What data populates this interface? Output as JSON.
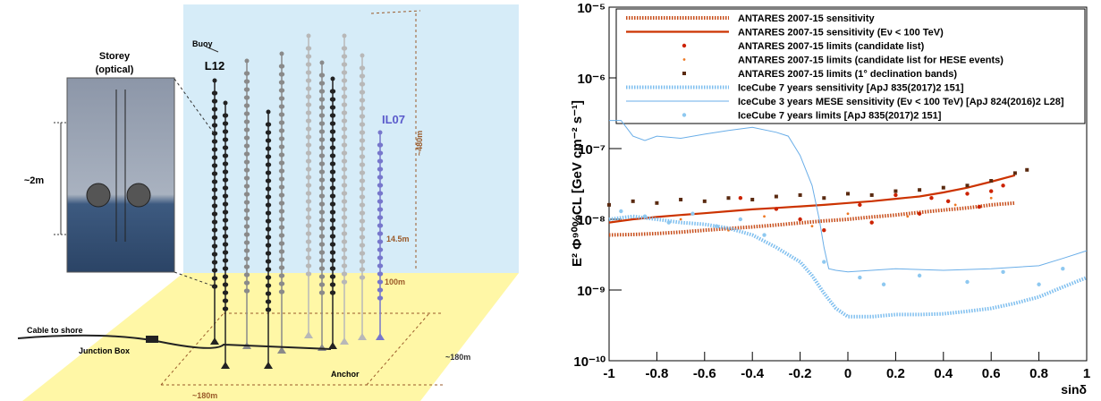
{
  "diagram": {
    "storey": "Storey",
    "storey_type": "(optical)",
    "storey_height": "~2m",
    "buoy": "Buoy",
    "line_l12": "L12",
    "line_il07": "IL07",
    "line_height": "~480m",
    "storey_spacing": "14.5m",
    "first_storey": "100m",
    "cable": "Cable to shore",
    "junction_box": "Junction Box",
    "anchor": "Anchor",
    "width_front": "~180m",
    "width_side": "~180m"
  },
  "chart_data": {
    "type": "line",
    "x_label": "sinδ",
    "y_label": "E² Φ⁹⁰%CL [GeV cm⁻² s⁻¹]",
    "xlim": [
      -1,
      1
    ],
    "xticks": [
      -1,
      -0.8,
      -0.6,
      -0.4,
      -0.2,
      0,
      0.2,
      0.4,
      0.6,
      0.8,
      1
    ],
    "ylim": [
      1e-10,
      1e-05
    ],
    "y_scale": "log",
    "yticks": [
      {
        "value": 1e-10,
        "label": "10⁻¹⁰"
      },
      {
        "value": 1e-09,
        "label": "10⁻⁹"
      },
      {
        "value": 1e-08,
        "label": "10⁻⁸"
      },
      {
        "value": 1e-07,
        "label": "10⁻⁷"
      },
      {
        "value": 1e-06,
        "label": "10⁻⁶"
      },
      {
        "value": 1e-05,
        "label": "10⁻⁵"
      }
    ],
    "legend": "top",
    "series": [
      {
        "name": "ANTARES 2007-15 sensitivity",
        "color": "#c8501e",
        "style": "dotted",
        "x": [
          -1,
          -0.9,
          -0.8,
          -0.7,
          -0.6,
          -0.5,
          -0.4,
          -0.3,
          -0.2,
          -0.1,
          0,
          0.1,
          0.2,
          0.3,
          0.4,
          0.5,
          0.6,
          0.7
        ],
        "values": [
          6e-09,
          6.1e-09,
          6.3e-09,
          6.6e-09,
          7e-09,
          7.4e-09,
          7.8e-09,
          8.3e-09,
          8.9e-09,
          9.5e-09,
          1e-08,
          1.08e-08,
          1.15e-08,
          1.25e-08,
          1.35e-08,
          1.45e-08,
          1.6e-08,
          1.7e-08
        ]
      },
      {
        "name": "ANTARES 2007-15 sensitivity (Eν < 100 TeV)",
        "color": "#cc3300",
        "style": "solid",
        "x": [
          -1,
          -0.9,
          -0.8,
          -0.7,
          -0.6,
          -0.5,
          -0.4,
          -0.3,
          -0.2,
          -0.1,
          0,
          0.1,
          0.2,
          0.3,
          0.4,
          0.5,
          0.6,
          0.7
        ],
        "values": [
          9e-09,
          1e-08,
          1.08e-08,
          1.15e-08,
          1.22e-08,
          1.3e-08,
          1.38e-08,
          1.45e-08,
          1.52e-08,
          1.6e-08,
          1.7e-08,
          1.8e-08,
          1.95e-08,
          2.1e-08,
          2.4e-08,
          2.8e-08,
          3.4e-08,
          4.2e-08
        ]
      },
      {
        "name": "ANTARES 2007-15 limits (candidate list)",
        "color": "#cc2200",
        "style": "dots",
        "x": [
          -0.45,
          -0.3,
          -0.2,
          -0.1,
          0.05,
          0.1,
          0.2,
          0.3,
          0.35,
          0.42,
          0.5,
          0.55,
          0.6,
          0.65
        ],
        "values": [
          2e-08,
          1.4e-08,
          1e-08,
          7e-09,
          1.6e-08,
          9e-09,
          2.2e-08,
          1.2e-08,
          2e-08,
          1.8e-08,
          2.3e-08,
          1.5e-08,
          2.5e-08,
          3e-08
        ]
      },
      {
        "name": "ANTARES 2007-15 limits (candidate list for HESE events)",
        "color": "#ee7722",
        "style": "small-dots",
        "x": [
          -0.7,
          -0.5,
          -0.35,
          -0.15,
          0,
          0.25,
          0.45,
          0.6
        ],
        "values": [
          1e-08,
          7e-09,
          1.1e-08,
          8e-09,
          1.2e-08,
          1.1e-08,
          1.6e-08,
          2e-08
        ]
      },
      {
        "name": "ANTARES 2007-15 limits (1° declination bands)",
        "color": "#5a2a10",
        "style": "squares",
        "x": [
          -1,
          -0.9,
          -0.8,
          -0.7,
          -0.6,
          -0.5,
          -0.4,
          -0.3,
          -0.2,
          -0.1,
          0,
          0.1,
          0.2,
          0.3,
          0.4,
          0.5,
          0.6,
          0.7,
          0.75
        ],
        "values": [
          1.6e-08,
          1.8e-08,
          1.7e-08,
          1.9e-08,
          1.8e-08,
          2e-08,
          1.9e-08,
          2.1e-08,
          2.2e-08,
          2e-08,
          2.3e-08,
          2.2e-08,
          2.5e-08,
          2.6e-08,
          2.8e-08,
          3e-08,
          3.5e-08,
          4.5e-08,
          5e-08
        ]
      },
      {
        "name": "IceCube 7 years sensitivity [ApJ 835(2017)2 151]",
        "color": "#7fbfef",
        "style": "dotted",
        "x": [
          -1,
          -0.9,
          -0.8,
          -0.7,
          -0.6,
          -0.5,
          -0.4,
          -0.3,
          -0.2,
          -0.15,
          -0.1,
          -0.05,
          0,
          0.1,
          0.2,
          0.3,
          0.4,
          0.5,
          0.6,
          0.7,
          0.8,
          0.9,
          1
        ],
        "values": [
          1e-08,
          1.1e-08,
          1e-08,
          9e-09,
          8.5e-09,
          7.5e-09,
          6e-09,
          4e-09,
          2.5e-09,
          1.6e-09,
          9e-10,
          5.5e-10,
          4.2e-10,
          4.2e-10,
          4.5e-10,
          4.5e-10,
          4.6e-10,
          5e-10,
          5.5e-10,
          6.5e-10,
          8e-10,
          1.1e-09,
          1.5e-09
        ]
      },
      {
        "name": "IceCube 3 years MESE sensitivity (Eν < 100 TeV) [ApJ 824(2016)2 L28]",
        "color": "#6aaee8",
        "style": "thin",
        "x": [
          -1,
          -0.95,
          -0.9,
          -0.85,
          -0.8,
          -0.7,
          -0.6,
          -0.5,
          -0.4,
          -0.3,
          -0.25,
          -0.2,
          -0.15,
          -0.12,
          -0.1,
          -0.08,
          -0.05,
          0,
          0.2,
          0.4,
          0.6,
          0.8,
          0.9,
          1
        ],
        "values": [
          2.5e-07,
          2.5e-07,
          1.5e-07,
          1.3e-07,
          1.5e-07,
          1.4e-07,
          1.6e-07,
          1.8e-07,
          2e-07,
          1.7e-07,
          1.5e-07,
          8e-08,
          3e-08,
          1e-08,
          4e-09,
          2e-09,
          1.9e-09,
          1.8e-09,
          2e-09,
          1.9e-09,
          2e-09,
          2.2e-09,
          2.8e-09,
          3.6e-09
        ]
      },
      {
        "name": "IceCube 7 years limits [ApJ 835(2017)2 151]",
        "color": "#8ec8f0",
        "style": "dots",
        "x": [
          -0.95,
          -0.85,
          -0.75,
          -0.65,
          -0.55,
          -0.45,
          -0.35,
          -0.1,
          0.05,
          0.15,
          0.3,
          0.5,
          0.65,
          0.8,
          0.9
        ],
        "values": [
          1.3e-08,
          1.1e-08,
          9e-09,
          1.2e-08,
          8e-09,
          1e-08,
          6e-09,
          2.5e-09,
          1.5e-09,
          1.2e-09,
          1.6e-09,
          1.3e-09,
          1.8e-09,
          1.2e-09,
          2e-09
        ]
      }
    ]
  }
}
